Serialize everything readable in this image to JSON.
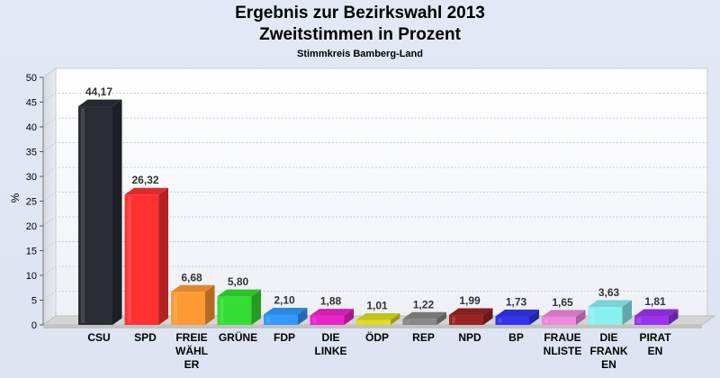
{
  "chart_data": {
    "type": "bar",
    "title": "Ergebnis zur Bezirkswahl 2013",
    "subtitle": "Zweitstimmen in Prozent",
    "subsubtitle": "Stimmkreis Bamberg-Land",
    "ylabel": "%",
    "xlabel": "",
    "ylim": [
      0,
      50
    ],
    "yticks": [
      "0",
      "5",
      "10",
      "15",
      "20",
      "25",
      "30",
      "35",
      "40",
      "45",
      "50"
    ],
    "grid": true,
    "categories": [
      "CSU",
      "SPD",
      "FREIE WÄHLER",
      "GRÜNE",
      "FDP",
      "DIE LINKE",
      "ÖDP",
      "REP",
      "NPD",
      "BP",
      "FRAUENLISTE",
      "DIE FRANKEN",
      "PIRATEN"
    ],
    "tick_labels": [
      [
        "CSU"
      ],
      [
        "SPD"
      ],
      [
        "FREIE",
        "WÄHL",
        "ER"
      ],
      [
        "GRÜNE"
      ],
      [
        "FDP"
      ],
      [
        "DIE",
        "LINKE"
      ],
      [
        "ÖDP"
      ],
      [
        "REP"
      ],
      [
        "NPD"
      ],
      [
        "BP"
      ],
      [
        "FRAUE",
        "NLISTE"
      ],
      [
        "DIE",
        "FRANK",
        "EN"
      ],
      [
        "PIRAT",
        "EN"
      ]
    ],
    "values": [
      44.17,
      26.32,
      6.68,
      5.8,
      2.1,
      1.88,
      1.01,
      1.22,
      1.99,
      1.73,
      1.65,
      3.63,
      1.81
    ],
    "value_labels": [
      "44,17",
      "26,32",
      "6,68",
      "5,80",
      "2,10",
      "1,88",
      "1,01",
      "1,22",
      "1,99",
      "1,73",
      "1,65",
      "3,63",
      "1,81"
    ],
    "colors": [
      "#2a2d36",
      "#ff3030",
      "#ff9933",
      "#33dd33",
      "#3399ff",
      "#ee22cc",
      "#dddd22",
      "#888888",
      "#992222",
      "#3333ee",
      "#ee88dd",
      "#88f0f0",
      "#9933ee"
    ]
  }
}
